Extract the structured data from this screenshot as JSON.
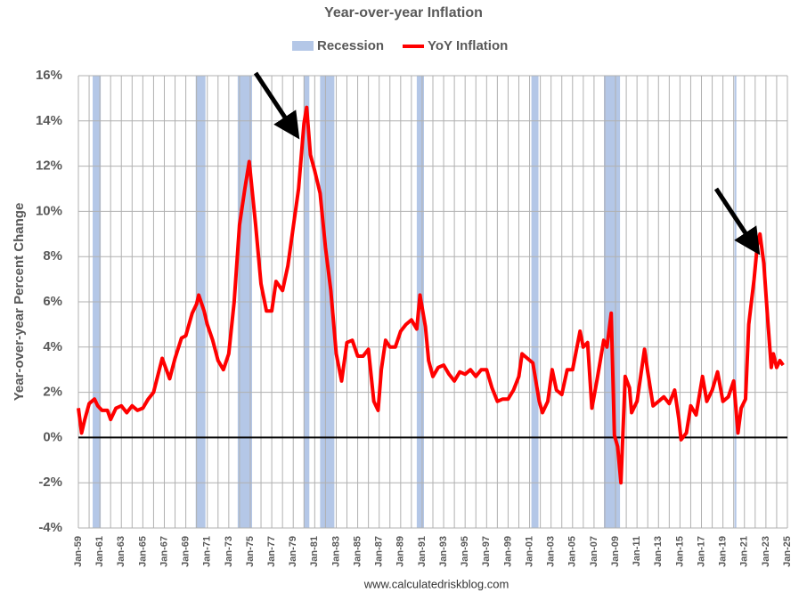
{
  "chart_data": {
    "type": "line",
    "title": "Year-over-year Inflation",
    "y_label": "Year-over-year Percent Change",
    "source": "www.calculatedriskblog.com",
    "xlim": [
      1959,
      2025
    ],
    "ylim": [
      -4,
      16
    ],
    "yticks": [
      {
        "value": -4,
        "label": "-4%"
      },
      {
        "value": -2,
        "label": "-2%"
      },
      {
        "value": 0,
        "label": "0%"
      },
      {
        "value": 2,
        "label": "2%"
      },
      {
        "value": 4,
        "label": "4%"
      },
      {
        "value": 6,
        "label": "6%"
      },
      {
        "value": 8,
        "label": "8%"
      },
      {
        "value": 10,
        "label": "10%"
      },
      {
        "value": 12,
        "label": "12%"
      },
      {
        "value": 14,
        "label": "14%"
      },
      {
        "value": 16,
        "label": "16%"
      }
    ],
    "xticks": [
      {
        "value": 1959,
        "label": "Jan-59"
      },
      {
        "value": 1961,
        "label": "Jan-61"
      },
      {
        "value": 1963,
        "label": "Jan-63"
      },
      {
        "value": 1965,
        "label": "Jan-65"
      },
      {
        "value": 1967,
        "label": "Jan-67"
      },
      {
        "value": 1969,
        "label": "Jan-69"
      },
      {
        "value": 1971,
        "label": "Jan-71"
      },
      {
        "value": 1973,
        "label": "Jan-73"
      },
      {
        "value": 1975,
        "label": "Jan-75"
      },
      {
        "value": 1977,
        "label": "Jan-77"
      },
      {
        "value": 1979,
        "label": "Jan-79"
      },
      {
        "value": 1981,
        "label": "Jan-81"
      },
      {
        "value": 1983,
        "label": "Jan-83"
      },
      {
        "value": 1985,
        "label": "Jan-85"
      },
      {
        "value": 1987,
        "label": "Jan-87"
      },
      {
        "value": 1989,
        "label": "Jan-89"
      },
      {
        "value": 1991,
        "label": "Jan-91"
      },
      {
        "value": 1993,
        "label": "Jan-93"
      },
      {
        "value": 1995,
        "label": "Jan-95"
      },
      {
        "value": 1997,
        "label": "Jan-97"
      },
      {
        "value": 1999,
        "label": "Jan-99"
      },
      {
        "value": 2001,
        "label": "Jan-01"
      },
      {
        "value": 2003,
        "label": "Jan-03"
      },
      {
        "value": 2005,
        "label": "Jan-05"
      },
      {
        "value": 2007,
        "label": "Jan-07"
      },
      {
        "value": 2009,
        "label": "Jan-09"
      },
      {
        "value": 2011,
        "label": "Jan-11"
      },
      {
        "value": 2013,
        "label": "Jan-13"
      },
      {
        "value": 2015,
        "label": "Jan-15"
      },
      {
        "value": 2017,
        "label": "Jan-17"
      },
      {
        "value": 2019,
        "label": "Jan-19"
      },
      {
        "value": 2021,
        "label": "Jan-21"
      },
      {
        "value": 2023,
        "label": "Jan-23"
      },
      {
        "value": 2025,
        "label": "Jan-25"
      }
    ],
    "xgrid_minor": [
      1960,
      1962,
      1964,
      1966,
      1968,
      1970,
      1972,
      1974,
      1976,
      1978,
      1980,
      1982,
      1984,
      1986,
      1988,
      1990,
      1992,
      1994,
      1996,
      1998,
      2000,
      2002,
      2004,
      2006,
      2008,
      2010,
      2012,
      2014,
      2016,
      2018,
      2020,
      2022,
      2024
    ],
    "grid": true,
    "legend": "top",
    "recessions": {
      "name": "Recession",
      "color": "#b4c7e7",
      "ranges": [
        [
          1960.33,
          1961.08
        ],
        [
          1969.92,
          1970.83
        ],
        [
          1973.83,
          1975.17
        ],
        [
          1980.0,
          1980.5
        ],
        [
          1981.5,
          1982.83
        ],
        [
          1990.5,
          1991.17
        ],
        [
          2001.17,
          2001.83
        ],
        [
          2007.92,
          2009.42
        ],
        [
          2020.08,
          2020.25
        ]
      ]
    },
    "series": [
      {
        "name": "YoY Inflation",
        "color": "#ff0000",
        "x": [
          1959.0,
          1959.3,
          1959.6,
          1960.0,
          1960.5,
          1960.8,
          1961.2,
          1961.7,
          1962.0,
          1962.5,
          1963.0,
          1963.5,
          1964.0,
          1964.5,
          1965.0,
          1965.5,
          1966.0,
          1966.8,
          1967.5,
          1968.0,
          1968.6,
          1969.0,
          1969.6,
          1970.0,
          1970.2,
          1970.7,
          1971.0,
          1971.5,
          1972.0,
          1972.5,
          1973.0,
          1973.5,
          1974.0,
          1974.5,
          1974.9,
          1975.5,
          1976.0,
          1976.5,
          1977.0,
          1977.4,
          1978.0,
          1978.5,
          1979.0,
          1979.5,
          1980.0,
          1980.25,
          1980.6,
          1981.0,
          1981.5,
          1982.0,
          1982.5,
          1983.0,
          1983.5,
          1984.0,
          1984.5,
          1985.0,
          1985.5,
          1986.0,
          1986.5,
          1986.9,
          1987.2,
          1987.6,
          1988.0,
          1988.5,
          1989.0,
          1989.5,
          1990.0,
          1990.5,
          1990.8,
          1991.3,
          1991.6,
          1992.0,
          1992.5,
          1993.0,
          1993.5,
          1994.0,
          1994.5,
          1995.0,
          1995.5,
          1996.0,
          1996.5,
          1997.0,
          1997.5,
          1998.0,
          1998.5,
          1999.0,
          1999.5,
          2000.0,
          2000.3,
          2000.8,
          2001.3,
          2001.9,
          2002.2,
          2002.7,
          2003.1,
          2003.5,
          2004.0,
          2004.5,
          2005.0,
          2005.7,
          2006.0,
          2006.4,
          2006.8,
          2007.3,
          2007.9,
          2008.2,
          2008.6,
          2008.9,
          2009.2,
          2009.5,
          2009.9,
          2010.3,
          2010.5,
          2011.0,
          2011.7,
          2012.0,
          2012.5,
          2013.0,
          2013.5,
          2014.0,
          2014.5,
          2014.9,
          2015.1,
          2015.6,
          2016.0,
          2016.5,
          2017.1,
          2017.5,
          2018.0,
          2018.5,
          2019.0,
          2019.5,
          2020.0,
          2020.4,
          2020.7,
          2021.1,
          2021.4,
          2021.9,
          2022.2,
          2022.45,
          2022.8,
          2023.2,
          2023.5,
          2023.7,
          2024.0,
          2024.3,
          2024.6
        ],
        "values": [
          1.3,
          0.2,
          0.8,
          1.5,
          1.7,
          1.4,
          1.2,
          1.2,
          0.8,
          1.3,
          1.4,
          1.1,
          1.4,
          1.2,
          1.3,
          1.7,
          2.0,
          3.5,
          2.6,
          3.5,
          4.4,
          4.5,
          5.5,
          5.9,
          6.3,
          5.6,
          5.0,
          4.3,
          3.4,
          3.0,
          3.7,
          6.0,
          9.4,
          11.0,
          12.2,
          9.4,
          6.8,
          5.6,
          5.6,
          6.9,
          6.5,
          7.6,
          9.3,
          11.0,
          13.9,
          14.6,
          12.5,
          11.8,
          10.8,
          8.4,
          6.5,
          3.7,
          2.5,
          4.2,
          4.3,
          3.6,
          3.6,
          3.9,
          1.6,
          1.2,
          3.0,
          4.3,
          4.0,
          4.0,
          4.7,
          5.0,
          5.2,
          4.8,
          6.3,
          4.9,
          3.4,
          2.7,
          3.1,
          3.2,
          2.8,
          2.5,
          2.9,
          2.8,
          3.0,
          2.7,
          3.0,
          3.0,
          2.2,
          1.6,
          1.7,
          1.7,
          2.1,
          2.7,
          3.7,
          3.5,
          3.3,
          1.6,
          1.1,
          1.6,
          3.0,
          2.1,
          1.9,
          3.0,
          3.0,
          4.7,
          4.0,
          4.2,
          1.3,
          2.6,
          4.3,
          4.0,
          5.5,
          0.1,
          -0.4,
          -2.0,
          2.7,
          2.2,
          1.1,
          1.6,
          3.9,
          2.9,
          1.4,
          1.6,
          1.8,
          1.5,
          2.1,
          0.8,
          -0.1,
          0.2,
          1.4,
          1.0,
          2.7,
          1.6,
          2.1,
          2.9,
          1.6,
          1.8,
          2.5,
          0.2,
          1.3,
          1.7,
          5.0,
          7.0,
          8.5,
          9.0,
          7.7,
          5.0,
          3.1,
          3.7,
          3.1,
          3.4,
          3.2
        ]
      }
    ]
  }
}
